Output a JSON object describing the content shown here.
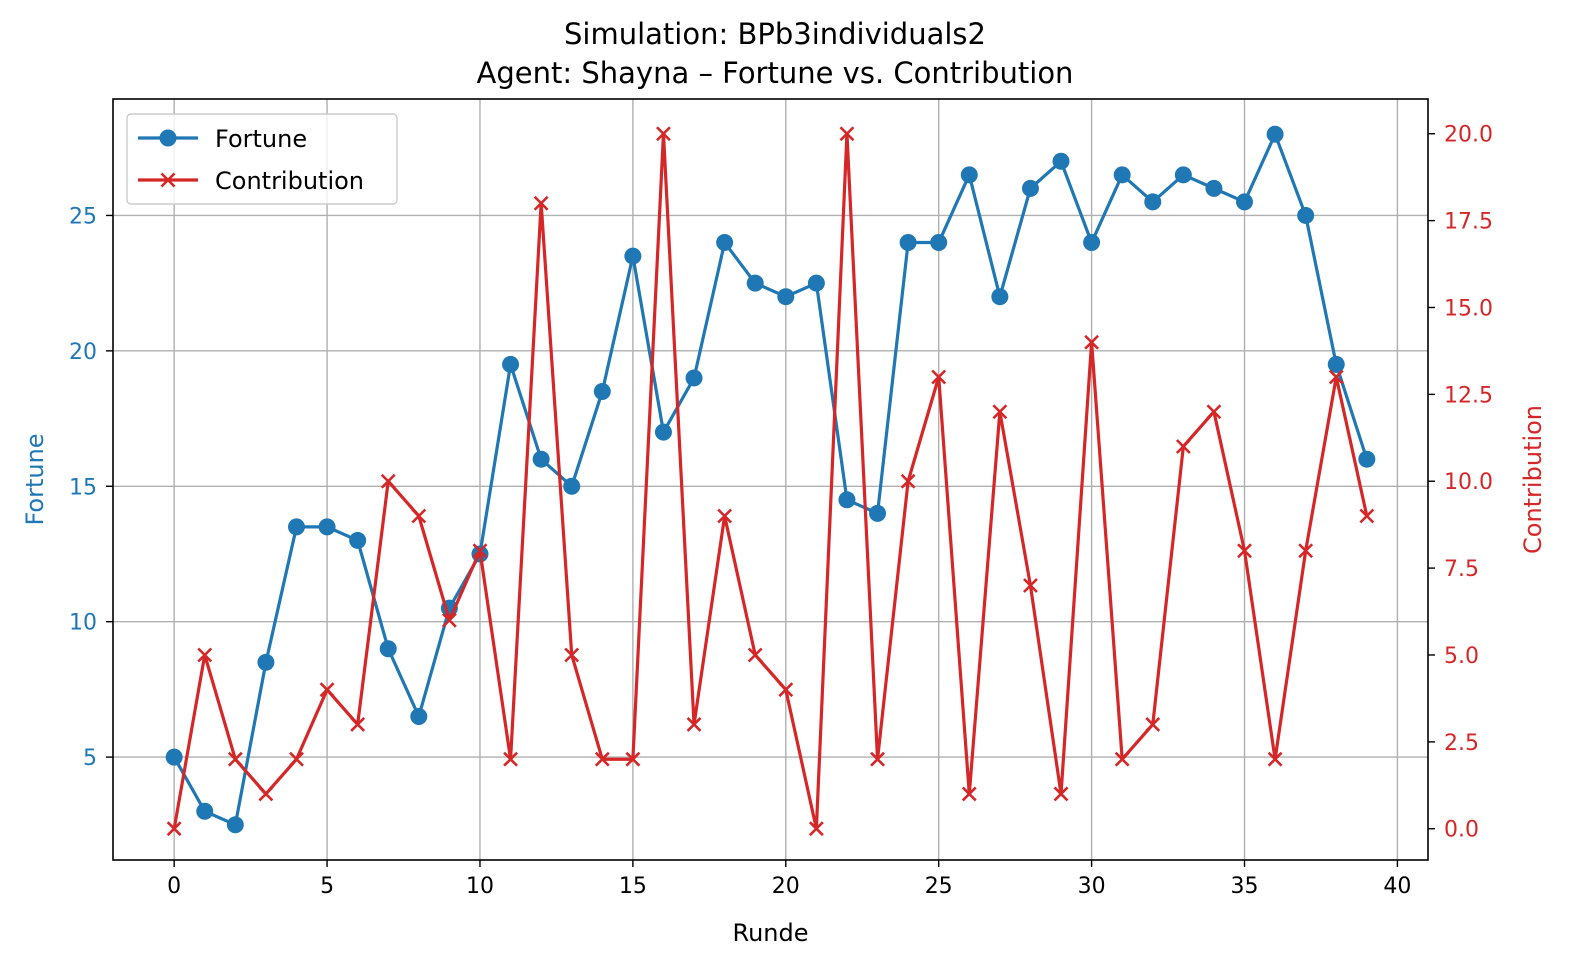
{
  "chart_data": {
    "type": "line",
    "title": "Simulation: BPb3individuals2",
    "subtitle": "Agent: Shayna – Fortune vs. Contribution",
    "xlabel": "Runde",
    "ylabel_left": "Fortune",
    "ylabel_right": "Contribution",
    "xlim": [
      -2,
      41
    ],
    "ylim_left": [
      1.2,
      29.3
    ],
    "ylim_right": [
      -0.9,
      21.0
    ],
    "x_ticks": [
      0,
      5,
      10,
      15,
      20,
      25,
      30,
      35,
      40
    ],
    "x_tick_labels": [
      "0",
      "5",
      "10",
      "15",
      "20",
      "25",
      "30",
      "35",
      "40"
    ],
    "y_left_ticks": [
      5,
      10,
      15,
      20,
      25
    ],
    "y_left_tick_labels": [
      "5",
      "10",
      "15",
      "20",
      "25"
    ],
    "y_right_ticks": [
      0,
      2.5,
      5,
      7.5,
      10,
      12.5,
      15,
      17.5,
      20
    ],
    "y_right_tick_labels": [
      "0.0",
      "2.5",
      "5.0",
      "7.5",
      "10.0",
      "12.5",
      "15.0",
      "17.5",
      "20.0"
    ],
    "grid": true,
    "legend_position": "top-left",
    "x": [
      0,
      1,
      2,
      3,
      4,
      5,
      6,
      7,
      8,
      9,
      10,
      11,
      12,
      13,
      14,
      15,
      16,
      17,
      18,
      19,
      20,
      21,
      22,
      23,
      24,
      25,
      26,
      27,
      28,
      29,
      30,
      31,
      32,
      33,
      34,
      35,
      36,
      37,
      38,
      39
    ],
    "series": [
      {
        "name": "Fortune",
        "axis": "left",
        "color": "#1f77b4",
        "marker": "circle",
        "values": [
          5,
          3,
          2.5,
          8.5,
          13.5,
          13.5,
          13,
          9,
          6.5,
          10.5,
          12.5,
          19.5,
          16,
          15,
          18.5,
          23.5,
          17,
          19,
          24,
          22.5,
          22,
          22.5,
          14.5,
          14,
          24,
          24,
          26.5,
          22,
          26,
          27,
          24,
          26.5,
          25.5,
          26.5,
          26,
          25.5,
          28,
          25,
          19.5,
          16
        ]
      },
      {
        "name": "Contribution",
        "axis": "right",
        "color": "#d62728",
        "marker": "x",
        "values": [
          0,
          5,
          2,
          1,
          2,
          4,
          3,
          10,
          9,
          6,
          8,
          2,
          18,
          5,
          2,
          2,
          20,
          3,
          9,
          5,
          4,
          0,
          20,
          2,
          10,
          13,
          1,
          12,
          7,
          1,
          14,
          2,
          3,
          11,
          12,
          8,
          2,
          8,
          13,
          9
        ]
      }
    ]
  }
}
